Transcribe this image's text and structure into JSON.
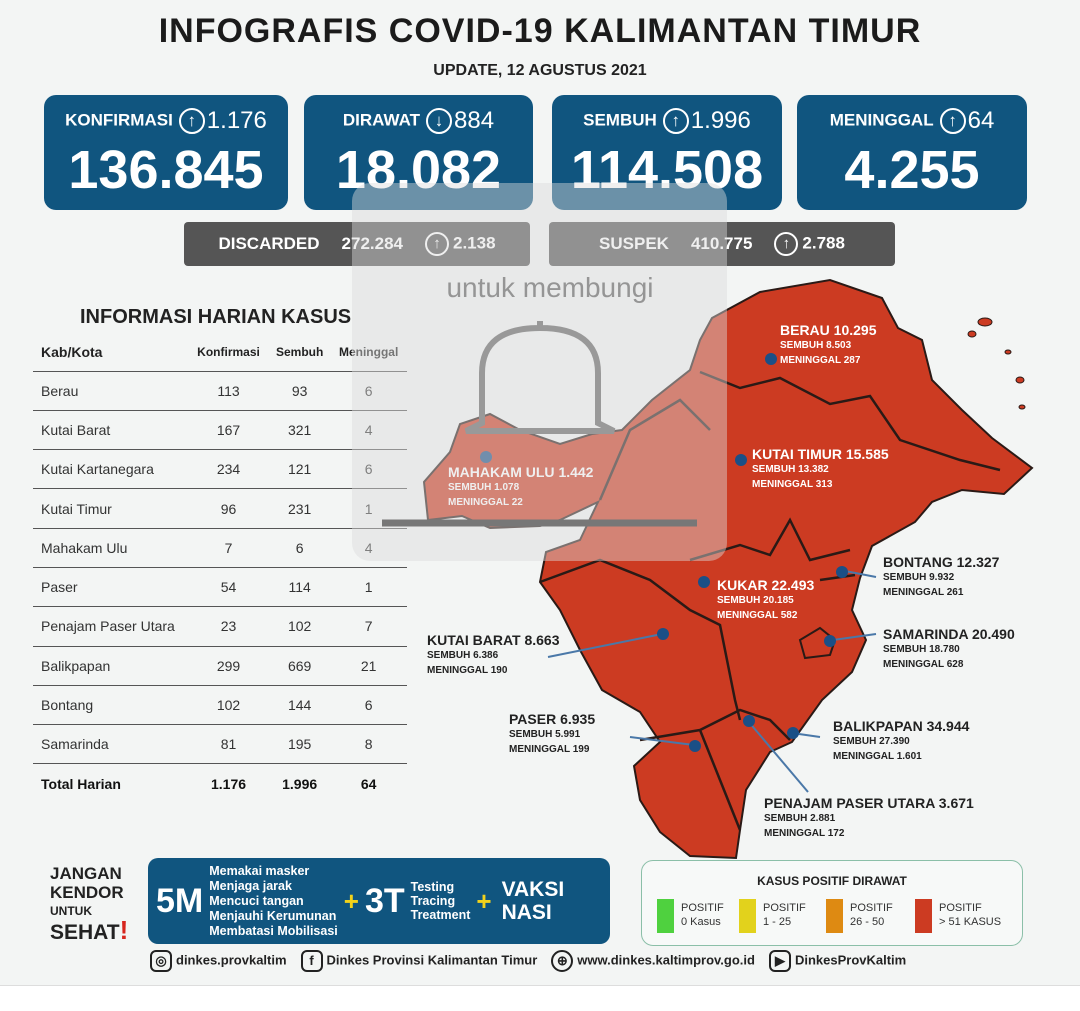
{
  "header": {
    "title": "INFOGRAFIS COVID-19 KALIMANTAN TIMUR",
    "update": "UPDATE, 12 AGUSTUS 2021"
  },
  "stats": [
    {
      "label": "KONFIRMASI",
      "direction": "up",
      "delta": "1.176",
      "value": "136.845"
    },
    {
      "label": "DIRAWAT",
      "direction": "down",
      "delta": "884",
      "value": "18.082"
    },
    {
      "label": "SEMBUH",
      "direction": "up",
      "delta": "1.996",
      "value": "114.508"
    },
    {
      "label": "MENINGGAL",
      "direction": "up",
      "delta": "64",
      "value": "4.255"
    }
  ],
  "secondary": [
    {
      "label": "DISCARDED",
      "value": "272.284",
      "delta": "2.138"
    },
    {
      "label": "SUSPEK",
      "value": "410.775",
      "delta": "2.788"
    }
  ],
  "table": {
    "title": "INFORMASI HARIAN KASUS",
    "headers": [
      "Kab/Kota",
      "Konfirmasi",
      "Sembuh",
      "Meninggal"
    ],
    "rows": [
      [
        "Berau",
        "113",
        "93",
        "6"
      ],
      [
        "Kutai Barat",
        "167",
        "321",
        "4"
      ],
      [
        "Kutai Kartanegara",
        "234",
        "121",
        "6"
      ],
      [
        "Kutai Timur",
        "96",
        "231",
        "1"
      ],
      [
        "Mahakam Ulu",
        "7",
        "6",
        "4"
      ],
      [
        "Paser",
        "54",
        "114",
        "1"
      ],
      [
        "Penajam Paser Utara",
        "23",
        "102",
        "7"
      ],
      [
        "Balikpapan",
        "299",
        "669",
        "21"
      ],
      [
        "Bontang",
        "102",
        "144",
        "6"
      ],
      [
        "Samarinda",
        "81",
        "195",
        "8"
      ]
    ],
    "total": [
      "Total Harian",
      "1.176",
      "1.996",
      "64"
    ]
  },
  "map": {
    "fill": "#cc3b22",
    "regions": [
      {
        "name": "BERAU",
        "total": "10.295",
        "sembuh": "SEMBUH 8.503",
        "meninggal": "MENINGGAL 287"
      },
      {
        "name": "KUTAI TIMUR",
        "total": "15.585",
        "sembuh": "SEMBUH 13.382",
        "meninggal": "MENINGGAL 313"
      },
      {
        "name": "MAHAKAM ULU",
        "total": "1.442",
        "sembuh": "SEMBUH 1.078",
        "meninggal": "MENINGGAL 22"
      },
      {
        "name": "KUKAR",
        "total": "22.493",
        "sembuh": "SEMBUH 20.185",
        "meninggal": "MENINGGAL 582"
      },
      {
        "name": "BONTANG",
        "total": "12.327",
        "sembuh": "SEMBUH 9.932",
        "meninggal": "MENINGGAL 261"
      },
      {
        "name": "SAMARINDA",
        "total": "20.490",
        "sembuh": "SEMBUH 18.780",
        "meninggal": "MENINGGAL 628"
      },
      {
        "name": "KUTAI BARAT",
        "total": "8.663",
        "sembuh": "SEMBUH 6.386",
        "meninggal": "MENINGGAL 190"
      },
      {
        "name": "PASER",
        "total": "6.935",
        "sembuh": "SEMBUH 5.991",
        "meninggal": "MENINGGAL 199"
      },
      {
        "name": "BALIKPAPAN",
        "total": "34.944",
        "sembuh": "SEMBUH 27.390",
        "meninggal": "MENINGGAL 1.601"
      },
      {
        "name": "PENAJAM PASER UTARA",
        "total": "3.671",
        "sembuh": "SEMBUH 2.881",
        "meninggal": "MENINGGAL 172"
      }
    ]
  },
  "slogan": {
    "l1": "JANGAN",
    "l2": "KENDOR",
    "l3": "UNTUK",
    "l4": "SEHAT",
    "mark": "!"
  },
  "campaign": {
    "m5": "5M",
    "m5_items": [
      "Memakai masker",
      "Menjaga jarak",
      "Mencuci tangan",
      "Menjauhi Kerumunan",
      "Membatasi Mobilisasi"
    ],
    "plus": "+",
    "t3": "3T",
    "t3_items": [
      "Testing",
      "Tracing",
      "Treatment"
    ],
    "vaksi1": "VAKSI",
    "vaksi2": "NASI"
  },
  "legend": {
    "title": "KASUS POSITIF DIRAWAT",
    "items": [
      {
        "l1": "POSITIF",
        "l2": "0 Kasus",
        "color": "#4fd13f"
      },
      {
        "l1": "POSITIF",
        "l2": "1 - 25",
        "color": "#e2d21c"
      },
      {
        "l1": "POSITIF",
        "l2": "26 - 50",
        "color": "#de8a12"
      },
      {
        "l1": "POSITIF",
        "l2": "> 51 KASUS",
        "color": "#cc3b22"
      }
    ]
  },
  "footer": {
    "instagram": "dinkes.provkaltim",
    "facebook": "Dinkes Provinsi Kalimantan Timur",
    "web": "www.dinkes.kaltimprov.go.id",
    "youtube": "DinkesProvKaltim"
  },
  "watermark": {
    "text": "untuk membungi"
  }
}
